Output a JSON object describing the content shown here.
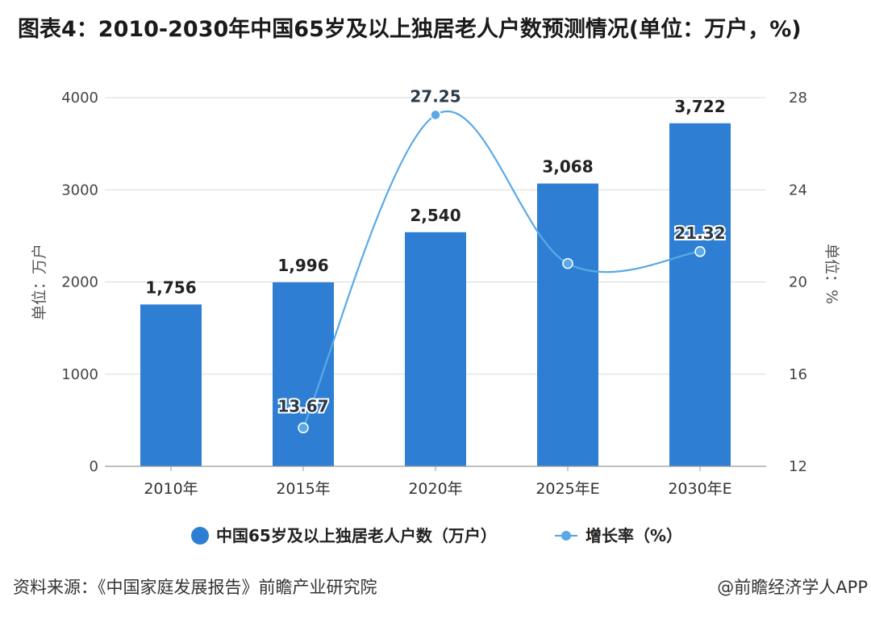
{
  "header": {
    "title": "图表4：2010-2030年中国65岁及以上独居老人户数预测情况(单位：万户，%)"
  },
  "footer": {
    "source": "资料来源：《中国家庭发展报告》前瞻产业研究院",
    "credit": "@前瞻经济学人APP"
  },
  "colors": {
    "bar": "#2e7fd3",
    "line": "#5aa9e6",
    "grid": "#d9d9d9"
  },
  "chart_data": {
    "type": "bar",
    "title": "图表4：2010-2030年中国65岁及以上独居老人户数预测情况(单位：万户，%)",
    "categories": [
      "2010年",
      "2015年",
      "2020年",
      "2025年E",
      "2030年E"
    ],
    "series": [
      {
        "name": "中国65岁及以上独居老人户数（万户）",
        "type": "bar",
        "axis": "left",
        "values": [
          1756,
          1996,
          2540,
          3068,
          3722
        ],
        "labels": [
          "1,756",
          "1,996",
          "2,540",
          "3,068",
          "3,722"
        ]
      },
      {
        "name": "增长率（%）",
        "type": "line",
        "axis": "right",
        "values": [
          null,
          13.67,
          27.25,
          20.8,
          21.32
        ],
        "labels": [
          "",
          "13.67",
          "27.25",
          "",
          "21.32"
        ]
      }
    ],
    "y_left": {
      "label": "单位：万户",
      "min": 0,
      "max": 4000,
      "ticks": [
        "0",
        "1000",
        "2000",
        "3000",
        "4000"
      ]
    },
    "y_right": {
      "label": "单位：%",
      "min": 12,
      "max": 28,
      "ticks": [
        "12",
        "16",
        "20",
        "24",
        "28"
      ]
    },
    "legend_position": "bottom",
    "grid": true
  }
}
